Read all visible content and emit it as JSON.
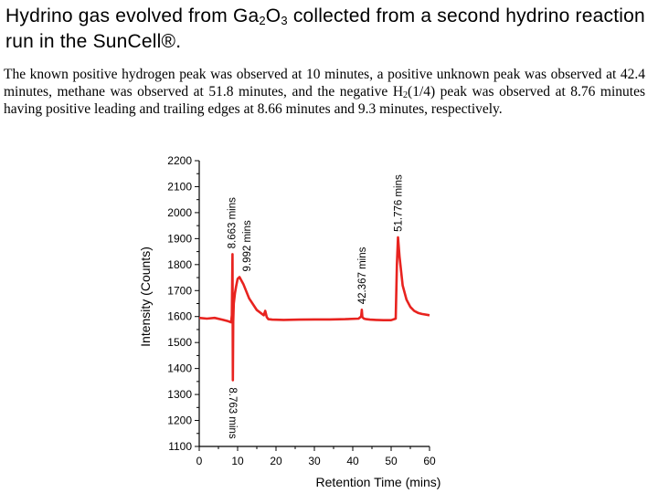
{
  "title": {
    "part1": "Hydrino gas evolved from Ga",
    "sub1": "2",
    "part2": "O",
    "sub2": "3",
    "part3": " collected from a second hydrino reaction run in the SunCell®."
  },
  "caption": {
    "part1": "The known positive hydrogen peak was observed at 10 minutes, a positive unknown peak was observed at 42.4 minutes, methane was observed at 51.8 minutes, and the negative H",
    "sub": "2",
    "part2": "(1/4) peak was observed at 8.76 minutes having positive leading and trailing edges at 8.66 minutes and 9.3 minutes, respectively."
  },
  "chart_data": {
    "type": "line",
    "xlabel": "Retention Time (mins)",
    "ylabel": "Intensity (Counts)",
    "xlim": [
      0,
      60
    ],
    "ylim": [
      1100,
      2200
    ],
    "xticks": [
      0,
      10,
      20,
      30,
      40,
      50,
      60
    ],
    "yticks": [
      1100,
      1200,
      1300,
      1400,
      1500,
      1600,
      1700,
      1800,
      1900,
      2000,
      2100,
      2200
    ],
    "grid": false,
    "series_color": "#e8231f",
    "series": [
      {
        "x": [
          0,
          2,
          4,
          6,
          7.5,
          8.3,
          8.5,
          8.663,
          8.72,
          8.763,
          8.85,
          9.0,
          9.3,
          9.6,
          9.992,
          10.5,
          11.5,
          13,
          15,
          16.8,
          17.2,
          17.6,
          18,
          19,
          22,
          26,
          30,
          34,
          38,
          41.5,
          42.2,
          42.367,
          42.5,
          42.9,
          43.5,
          44.5,
          46,
          48,
          50,
          51.2,
          51.5,
          51.776,
          52.2,
          53,
          54,
          55,
          56,
          57,
          58,
          60
        ],
        "y": [
          1595,
          1592,
          1595,
          1588,
          1582,
          1578,
          1605,
          1840,
          1610,
          1355,
          1580,
          1650,
          1690,
          1715,
          1745,
          1752,
          1725,
          1670,
          1625,
          1605,
          1622,
          1598,
          1590,
          1588,
          1587,
          1588,
          1589,
          1589,
          1590,
          1592,
          1600,
          1626,
          1598,
          1592,
          1590,
          1588,
          1587,
          1586,
          1586,
          1592,
          1800,
          1905,
          1830,
          1720,
          1665,
          1637,
          1622,
          1614,
          1610,
          1605
        ]
      }
    ],
    "annotations": [
      {
        "text": "8.663 mins",
        "x": 8.663,
        "y": 1840,
        "position": "above"
      },
      {
        "text": "9.992 mins",
        "x": 9.992,
        "y": 1752,
        "position": "above"
      },
      {
        "text": "8.763 mins",
        "x": 8.763,
        "y": 1355,
        "position": "below"
      },
      {
        "text": "42.367 mins",
        "x": 42.367,
        "y": 1626,
        "position": "above"
      },
      {
        "text": "51.776 mins",
        "x": 51.776,
        "y": 1905,
        "position": "above"
      }
    ]
  }
}
